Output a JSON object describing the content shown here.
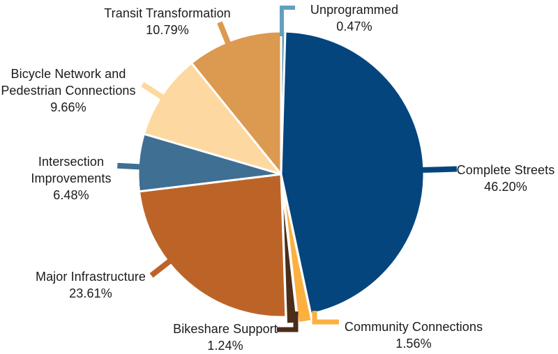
{
  "chart_data": {
    "type": "pie",
    "title": "",
    "direction": "clockwise",
    "start_angle_deg": 0,
    "background": "#ffffff",
    "text_color": "#1b1b1b",
    "slices": [
      {
        "key": "unprogrammed",
        "label": "Unprogrammed",
        "value": 0.47,
        "pct_label": "0.47%",
        "color": "#639fbe"
      },
      {
        "key": "complete-streets",
        "label": "Complete Streets",
        "value": 46.2,
        "pct_label": "46.20%",
        "color": "#04457e"
      },
      {
        "key": "community-connections",
        "label": "Community Connections",
        "value": 1.56,
        "pct_label": "1.56%",
        "color": "#fbb040"
      },
      {
        "key": "bikeshare-support",
        "label": "Bikeshare Support",
        "value": 1.24,
        "pct_label": "1.24%",
        "color": "#4a2d1a"
      },
      {
        "key": "major-infrastructure",
        "label": "Major Infrastructure",
        "value": 23.61,
        "pct_label": "23.61%",
        "color": "#bc6427"
      },
      {
        "key": "intersection-improvements",
        "label": "Intersection Improvements",
        "value": 6.48,
        "pct_label": "6.48%",
        "color": "#406f94"
      },
      {
        "key": "bicycle-network",
        "label": "Bicycle Network and Pedestrian Connections",
        "value": 9.66,
        "pct_label": "9.66%",
        "color": "#fdd9a1"
      },
      {
        "key": "transit-transformation",
        "label": "Transit Transformation",
        "value": 10.79,
        "pct_label": "10.79%",
        "color": "#dc9950"
      }
    ]
  }
}
